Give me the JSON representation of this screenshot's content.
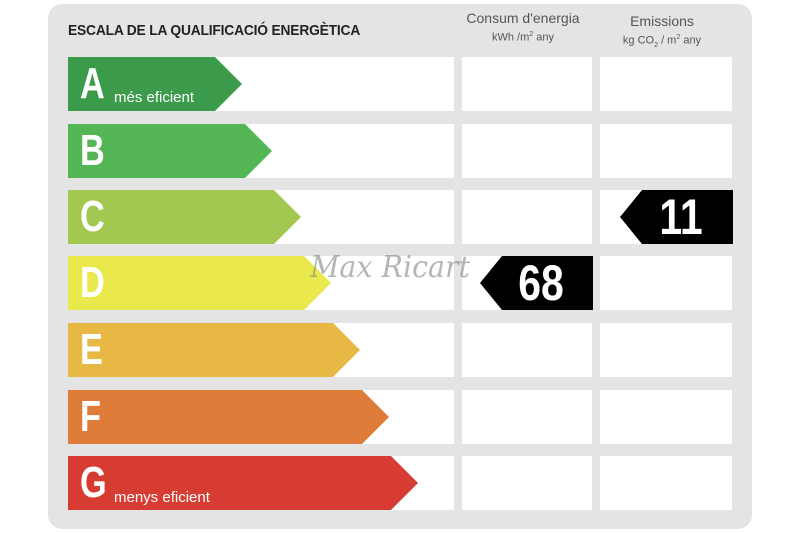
{
  "title": "ESCALA DE LA QUALIFICACIÓ ENERGÈTICA",
  "columns": {
    "consum": {
      "label": "Consum d'energia",
      "unit_pre": "kWh /m",
      "unit_sup": "2",
      "unit_post": " any"
    },
    "emissions": {
      "label": "Emissions",
      "unit_pre": "kg CO",
      "unit_sub": "2",
      "unit_mid": " / m",
      "unit_sup": "2",
      "unit_post": " any"
    }
  },
  "ratings": [
    {
      "letter": "A",
      "color": "#3b9b4a",
      "label": "més eficient"
    },
    {
      "letter": "B",
      "color": "#54b554",
      "label": ""
    },
    {
      "letter": "C",
      "color": "#a3c852",
      "label": ""
    },
    {
      "letter": "D",
      "color": "#e9e84c",
      "label": ""
    },
    {
      "letter": "E",
      "color": "#e7b844",
      "label": ""
    },
    {
      "letter": "F",
      "color": "#df7c3a",
      "label": ""
    },
    {
      "letter": "G",
      "color": "#d63c31",
      "label": "menys eficient"
    }
  ],
  "consum_value": {
    "value": "68",
    "rating": "D"
  },
  "emissions_value": {
    "value": "11",
    "rating": "C"
  },
  "watermark": "Max Ricart"
}
